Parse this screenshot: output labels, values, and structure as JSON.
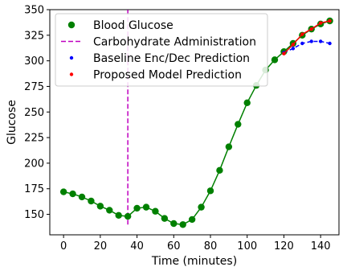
{
  "chart_data": {
    "type": "line",
    "title": "",
    "xlabel": "Time (minutes)",
    "ylabel": "Glucose",
    "xlim": [
      -7.5,
      150
    ],
    "ylim": [
      130,
      350
    ],
    "xticks": [
      0,
      20,
      40,
      60,
      80,
      100,
      120,
      140
    ],
    "xtick_labels": [
      "0",
      "20",
      "40",
      "60",
      "80",
      "100",
      "120",
      "140"
    ],
    "yticks": [
      150,
      175,
      200,
      225,
      250,
      275,
      300,
      325,
      350
    ],
    "ytick_labels": [
      "150",
      "175",
      "200",
      "225",
      "250",
      "275",
      "300",
      "325",
      "350"
    ],
    "grid": false,
    "legend_position": "top-left",
    "series": [
      {
        "name": "Blood Glucose",
        "color": "#008000",
        "style": "line-with-markers",
        "x": [
          0,
          5,
          10,
          15,
          20,
          25,
          30,
          35,
          40,
          45,
          50,
          55,
          60,
          65,
          70,
          75,
          80,
          85,
          90,
          95,
          100,
          105,
          110,
          115,
          120,
          125,
          130,
          135,
          140,
          145
        ],
        "y": [
          172,
          170,
          167,
          163,
          158,
          154,
          149,
          148,
          156,
          157,
          153,
          146,
          141,
          140,
          145,
          157,
          173,
          193,
          216,
          238,
          259,
          276,
          291,
          301,
          309,
          317,
          325,
          331,
          336,
          339
        ]
      },
      {
        "name": "Baseline Enc/Dec Prediction",
        "color": "#0000ff",
        "style": "dashed-line-with-dots",
        "x": [
          120,
          125,
          130,
          135,
          140,
          145
        ],
        "y": [
          308,
          312,
          317,
          319,
          319,
          317
        ]
      },
      {
        "name": "Proposed Model Prediction",
        "color": "#ff0000",
        "style": "line-with-dots",
        "x": [
          120,
          125,
          130,
          135,
          140,
          145
        ],
        "y": [
          307,
          316,
          326,
          331,
          337,
          339
        ]
      }
    ],
    "annotations": [
      {
        "name": "Carbohydrate Administration",
        "type": "vertical-dashed-line",
        "color": "#c000c0",
        "x": 35,
        "y_range": [
          140,
          350
        ]
      }
    ]
  }
}
